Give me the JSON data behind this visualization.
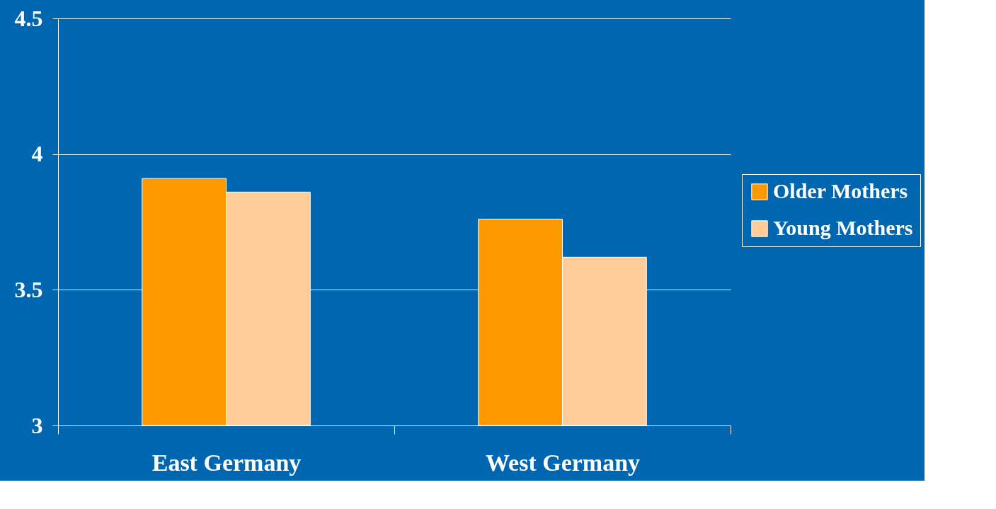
{
  "chart_data": {
    "type": "bar",
    "categories": [
      "East Germany",
      "West Germany"
    ],
    "series": [
      {
        "name": "Older Mothers",
        "color": "#ff9900",
        "values": [
          3.91,
          3.76
        ]
      },
      {
        "name": "Young Mothers",
        "color": "#ffcc99",
        "values": [
          3.86,
          3.62
        ]
      }
    ],
    "ylim": [
      3,
      4.5
    ],
    "yticks": [
      3,
      3.5,
      4,
      4.5
    ],
    "grid": "y",
    "legend": "right"
  }
}
